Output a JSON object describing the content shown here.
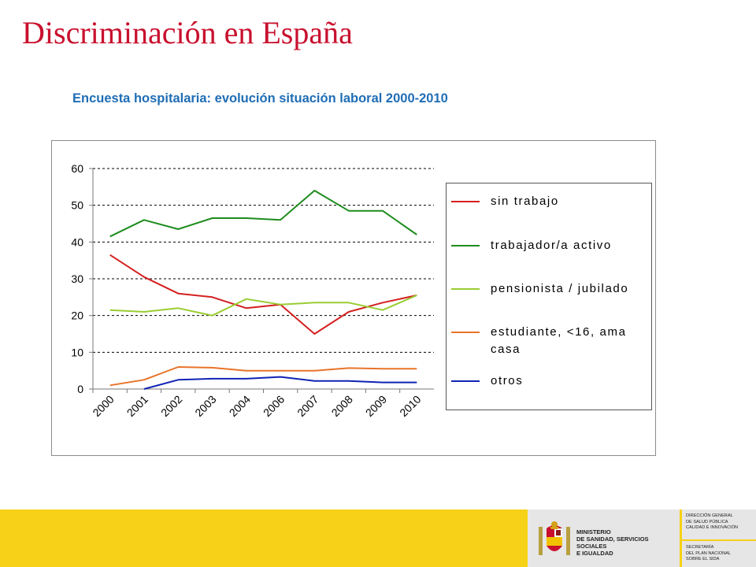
{
  "slide": {
    "title": "Discriminación en España",
    "subtitle": "Encuesta hospitalaria: evolución situación laboral 2000-2010"
  },
  "chart_data": {
    "type": "line",
    "title": "",
    "xlabel": "",
    "ylabel": "",
    "categories": [
      "2000",
      "2001",
      "2002",
      "2003",
      "2004",
      "2006",
      "2007",
      "2008",
      "2009",
      "2010"
    ],
    "ylim": [
      0,
      60
    ],
    "yticks": [
      0,
      10,
      20,
      30,
      40,
      50,
      60
    ],
    "grid": "horizontal dashed",
    "legend_position": "right",
    "series": [
      {
        "name": "sin trabajo",
        "color": "#d42020",
        "values": [
          36.5,
          30.5,
          26,
          25,
          22,
          23,
          15,
          21,
          23.5,
          25.5
        ]
      },
      {
        "name": "trabajador/a activo",
        "color": "#1e8c1e",
        "values": [
          41.5,
          46,
          43.5,
          46.5,
          46.5,
          46,
          54,
          48.5,
          48.5,
          42
        ]
      },
      {
        "name": "pensionista / jubilado",
        "color": "#9acd32",
        "values": [
          21.5,
          21,
          22,
          20,
          24.5,
          23,
          23.5,
          23.5,
          21.5,
          25.5
        ]
      },
      {
        "name": "estudiante, <16, ama casa",
        "color": "#e8732a",
        "values": [
          1,
          2.5,
          6,
          5.8,
          5,
          5,
          5,
          5.7,
          5.5,
          5.5
        ]
      },
      {
        "name": "otros",
        "color": "#1024b4",
        "values": [
          null,
          0,
          2.5,
          2.8,
          2.8,
          3.3,
          2.2,
          2.2,
          1.8,
          1.8
        ]
      }
    ]
  },
  "footer": {
    "ministry_text": "MINISTERIO\nDE SANIDAD, SERVICIOS SOCIALES\nE IGUALDAD",
    "agency_top": "DIRECCIÓN GENERAL\nDE SALUD PÚBLICA\nCALIDAD E INNOVACIÓN",
    "agency_bottom": "SECRETARÍA\nDEL PLAN NACIONAL\nSOBRE EL SIDA"
  }
}
